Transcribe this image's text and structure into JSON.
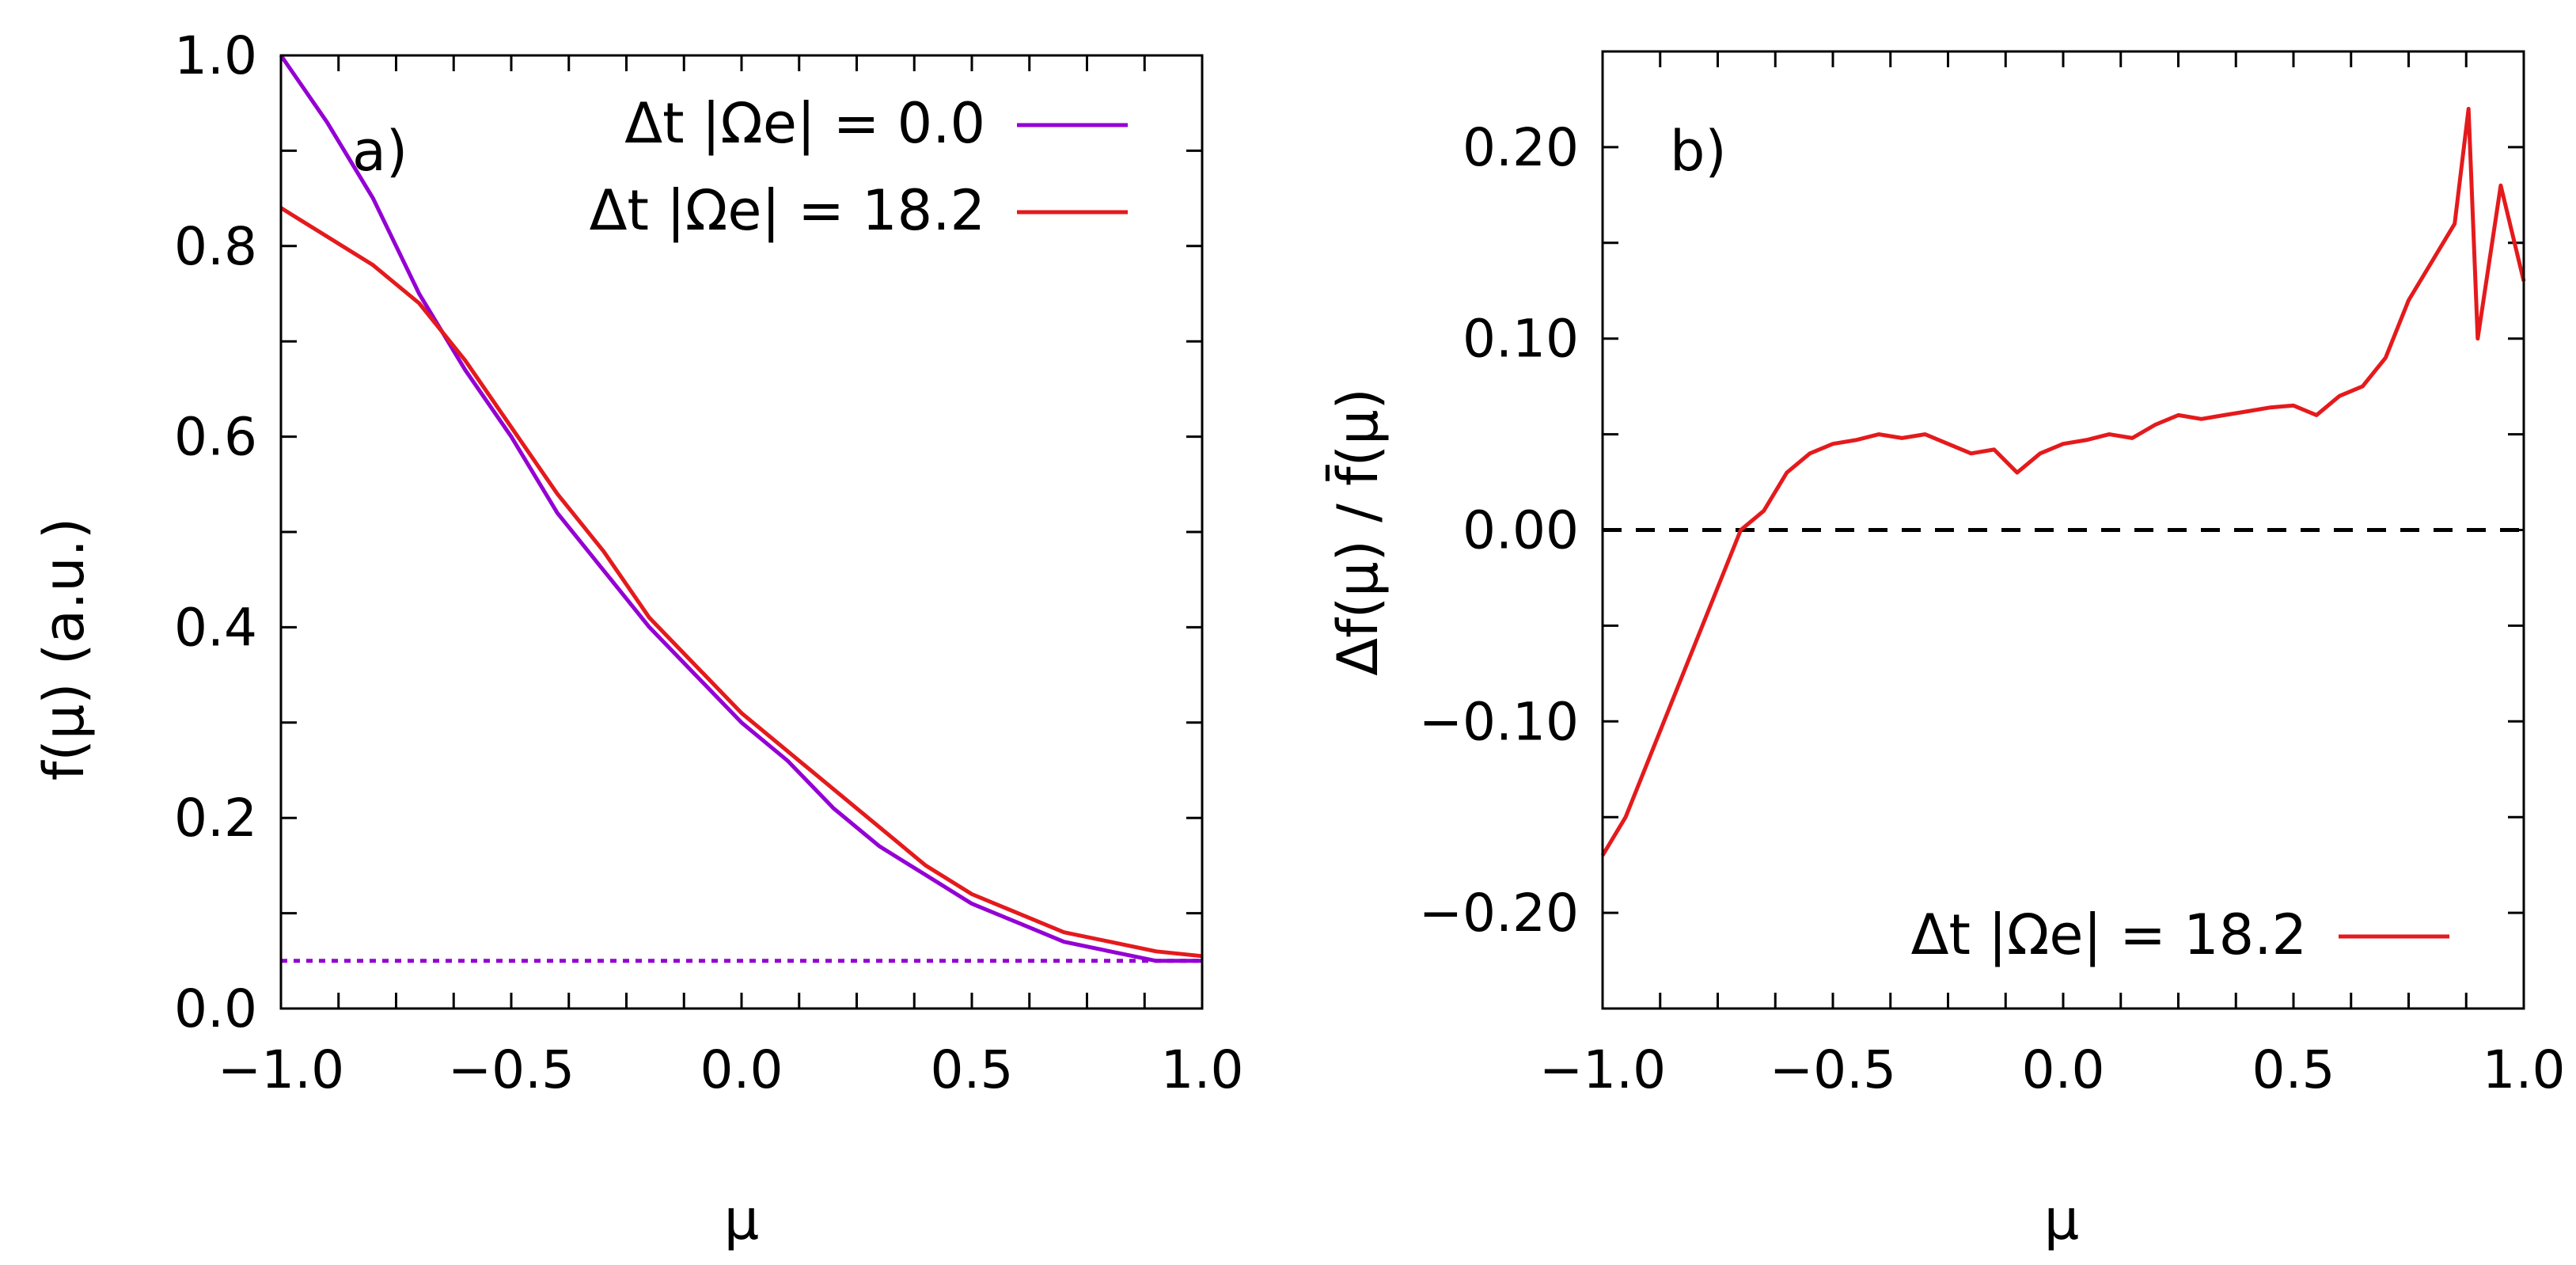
{
  "chart_data": [
    {
      "type": "line",
      "panel_label": "a)",
      "xlabel": "μ",
      "ylabel": "f(μ) (a.u.)",
      "xlim": [
        -1.0,
        1.0
      ],
      "ylim": [
        0.0,
        1.0
      ],
      "xticks": [
        "−1.0",
        "−0.5",
        "0.0",
        "0.5",
        "1.0"
      ],
      "yticks": [
        "0.0",
        "0.2",
        "0.4",
        "0.6",
        "0.8",
        "1.0"
      ],
      "legend_position": "top-right",
      "reference_line": {
        "y": 0.05,
        "style": "dotted",
        "color": "#9400d3"
      },
      "series": [
        {
          "name": "Δt |Ωe| = 0.0",
          "legend_label": "Δt |Ωe| = 0.0",
          "color": "#9400d3",
          "x": [
            -1.0,
            -0.9,
            -0.8,
            -0.75,
            -0.7,
            -0.6,
            -0.5,
            -0.4,
            -0.3,
            -0.2,
            -0.1,
            0.0,
            0.1,
            0.2,
            0.3,
            0.4,
            0.5,
            0.6,
            0.7,
            0.8,
            0.9,
            1.0
          ],
          "values": [
            1.0,
            0.93,
            0.85,
            0.8,
            0.75,
            0.67,
            0.6,
            0.52,
            0.46,
            0.4,
            0.35,
            0.3,
            0.26,
            0.21,
            0.17,
            0.14,
            0.11,
            0.09,
            0.07,
            0.06,
            0.05,
            0.05
          ]
        },
        {
          "name": "Δt |Ωe| = 18.2",
          "legend_label": "Δt |Ωe| = 18.2",
          "color": "#e41a1c",
          "x": [
            -1.0,
            -0.9,
            -0.8,
            -0.75,
            -0.7,
            -0.6,
            -0.5,
            -0.4,
            -0.3,
            -0.2,
            -0.1,
            0.0,
            0.1,
            0.2,
            0.3,
            0.4,
            0.5,
            0.6,
            0.7,
            0.8,
            0.9,
            1.0
          ],
          "values": [
            0.84,
            0.81,
            0.78,
            0.76,
            0.74,
            0.68,
            0.61,
            0.54,
            0.48,
            0.41,
            0.36,
            0.31,
            0.27,
            0.23,
            0.19,
            0.15,
            0.12,
            0.1,
            0.08,
            0.07,
            0.06,
            0.055
          ]
        }
      ]
    },
    {
      "type": "line",
      "panel_label": "b)",
      "xlabel": "μ",
      "ylabel": "Δf(μ) / f̄(μ)",
      "xlim": [
        -1.0,
        1.0
      ],
      "ylim": [
        -0.25,
        0.25
      ],
      "xticks": [
        "−1.0",
        "−0.5",
        "0.0",
        "0.5",
        "1.0"
      ],
      "yticks": [
        "−0.20",
        "−0.10",
        "0.00",
        "0.10",
        "0.20"
      ],
      "ytick_values": [
        -0.2,
        -0.1,
        0.0,
        0.1,
        0.2
      ],
      "legend_position": "bottom-right",
      "reference_line": {
        "y": 0.0,
        "style": "dashed",
        "color": "#000000"
      },
      "series": [
        {
          "name": "Δt |Ωe| = 18.2",
          "legend_label": "Δt |Ωe| = 18.2",
          "color": "#e41a1c",
          "x": [
            -1.0,
            -0.95,
            -0.9,
            -0.85,
            -0.8,
            -0.75,
            -0.7,
            -0.65,
            -0.6,
            -0.55,
            -0.5,
            -0.45,
            -0.4,
            -0.35,
            -0.3,
            -0.25,
            -0.2,
            -0.15,
            -0.1,
            -0.05,
            0.0,
            0.05,
            0.1,
            0.15,
            0.2,
            0.25,
            0.3,
            0.35,
            0.4,
            0.45,
            0.5,
            0.55,
            0.6,
            0.65,
            0.7,
            0.75,
            0.8,
            0.85,
            0.88,
            0.9,
            0.95,
            1.0
          ],
          "values": [
            -0.17,
            -0.15,
            -0.12,
            -0.09,
            -0.06,
            -0.03,
            0.0,
            0.01,
            0.03,
            0.04,
            0.045,
            0.047,
            0.05,
            0.048,
            0.05,
            0.045,
            0.04,
            0.042,
            0.03,
            0.04,
            0.045,
            0.047,
            0.05,
            0.048,
            0.055,
            0.06,
            0.058,
            0.06,
            0.062,
            0.064,
            0.065,
            0.06,
            0.07,
            0.075,
            0.09,
            0.12,
            0.14,
            0.16,
            0.22,
            0.1,
            0.18,
            0.13
          ]
        }
      ]
    }
  ]
}
